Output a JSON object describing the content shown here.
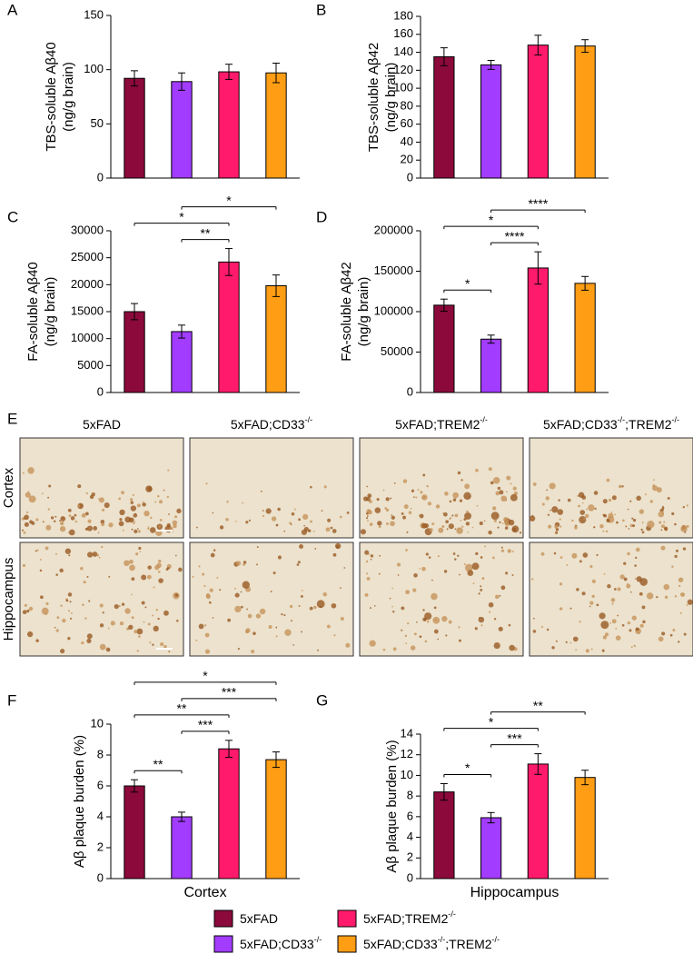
{
  "chart_data": [
    {
      "type": "bar",
      "panel": "A",
      "ylabel": [
        "TBS-soluble Aβ40",
        "(ng/g brain)"
      ],
      "values": [
        92,
        89,
        98,
        97
      ],
      "errors": [
        7,
        8,
        7,
        9
      ],
      "colors": [
        "#8b0a3b",
        "#a23cff",
        "#ff1a6b",
        "#ff9d14"
      ],
      "ylim": [
        0,
        150
      ],
      "yticks": [
        0,
        50,
        100,
        150
      ],
      "significance": []
    },
    {
      "type": "bar",
      "panel": "B",
      "ylabel": [
        "TBS-soluble Aβ42",
        "(ng/g brain)"
      ],
      "values": [
        135,
        126,
        148,
        147
      ],
      "errors": [
        10,
        5,
        11,
        7
      ],
      "colors": [
        "#8b0a3b",
        "#a23cff",
        "#ff1a6b",
        "#ff9d14"
      ],
      "ylim": [
        0,
        180
      ],
      "yticks": [
        0,
        20,
        40,
        60,
        80,
        100,
        120,
        140,
        160,
        180
      ],
      "significance": []
    },
    {
      "type": "bar",
      "panel": "C",
      "ylabel": [
        "FA-soluble Aβ40",
        "(ng/g brain)"
      ],
      "values": [
        15000,
        11300,
        24200,
        19800
      ],
      "errors": [
        1500,
        1200,
        2500,
        2000
      ],
      "colors": [
        "#8b0a3b",
        "#a23cff",
        "#ff1a6b",
        "#ff9d14"
      ],
      "ylim": [
        0,
        30000
      ],
      "yticks": [
        0,
        5000,
        10000,
        15000,
        20000,
        25000,
        30000
      ],
      "significance": [
        {
          "from": 1,
          "to": 2,
          "label": "**"
        },
        {
          "from": 0,
          "to": 2,
          "label": "*"
        },
        {
          "from": 1,
          "to": 3,
          "label": "*"
        }
      ]
    },
    {
      "type": "bar",
      "panel": "D",
      "ylabel": [
        "FA-soluble Aβ42",
        "(ng/g brain)"
      ],
      "values": [
        108000,
        66000,
        154000,
        135000
      ],
      "errors": [
        7500,
        5000,
        20000,
        8500
      ],
      "colors": [
        "#8b0a3b",
        "#a23cff",
        "#ff1a6b",
        "#ff9d14"
      ],
      "ylim": [
        0,
        200000
      ],
      "yticks": [
        0,
        50000,
        100000,
        150000,
        200000
      ],
      "significance": [
        {
          "from": 0,
          "to": 1,
          "label": "*"
        },
        {
          "from": 1,
          "to": 2,
          "label": "****"
        },
        {
          "from": 0,
          "to": 2,
          "label": "*"
        },
        {
          "from": 1,
          "to": 3,
          "label": "****"
        }
      ]
    },
    {
      "type": "bar",
      "panel": "F",
      "ylabel": [
        "Aβ plaque burden (%)"
      ],
      "xlabel": "Cortex",
      "values": [
        6.0,
        4.0,
        8.4,
        7.7
      ],
      "errors": [
        0.4,
        0.3,
        0.55,
        0.5
      ],
      "colors": [
        "#8b0a3b",
        "#a23cff",
        "#ff1a6b",
        "#ff9d14"
      ],
      "ylim": [
        0,
        10
      ],
      "yticks": [
        0,
        2,
        4,
        6,
        8,
        10
      ],
      "significance": [
        {
          "from": 0,
          "to": 1,
          "label": "**"
        },
        {
          "from": 1,
          "to": 2,
          "label": "***"
        },
        {
          "from": 0,
          "to": 2,
          "label": "**"
        },
        {
          "from": 1,
          "to": 3,
          "label": "***"
        },
        {
          "from": 0,
          "to": 3,
          "label": "*"
        }
      ]
    },
    {
      "type": "bar",
      "panel": "G",
      "ylabel": [
        "Aβ plaque burden (%)"
      ],
      "xlabel": "Hippocampus",
      "values": [
        8.4,
        5.9,
        11.1,
        9.8
      ],
      "errors": [
        0.8,
        0.5,
        1.0,
        0.7
      ],
      "colors": [
        "#8b0a3b",
        "#a23cff",
        "#ff1a6b",
        "#ff9d14"
      ],
      "ylim": [
        0,
        14
      ],
      "yticks": [
        0,
        2,
        4,
        6,
        8,
        10,
        12,
        14
      ],
      "significance": [
        {
          "from": 0,
          "to": 1,
          "label": "*"
        },
        {
          "from": 1,
          "to": 2,
          "label": "***"
        },
        {
          "from": 0,
          "to": 2,
          "label": "*"
        },
        {
          "from": 1,
          "to": 3,
          "label": "**"
        }
      ]
    }
  ],
  "images": {
    "panel": "E",
    "columns": [
      [
        "5xFAD"
      ],
      [
        "5xFAD;CD33",
        "-/-"
      ],
      [
        "5xFAD;TREM2",
        "-/-"
      ],
      [
        "5xFAD;CD33",
        "-/-",
        ";TREM2",
        "-/-"
      ]
    ],
    "rows": [
      "Cortex",
      "Hippocampus"
    ]
  },
  "legend": [
    {
      "name": [
        "5xFAD"
      ],
      "color": "#8b0a3b"
    },
    {
      "name": [
        "5xFAD;CD33",
        "-/-"
      ],
      "color": "#a23cff"
    },
    {
      "name": [
        "5xFAD;TREM2",
        "-/-"
      ],
      "color": "#ff1a6b"
    },
    {
      "name": [
        "5xFAD;CD33",
        "-/-",
        ";TREM2",
        "-/-"
      ],
      "color": "#ff9d14"
    }
  ]
}
